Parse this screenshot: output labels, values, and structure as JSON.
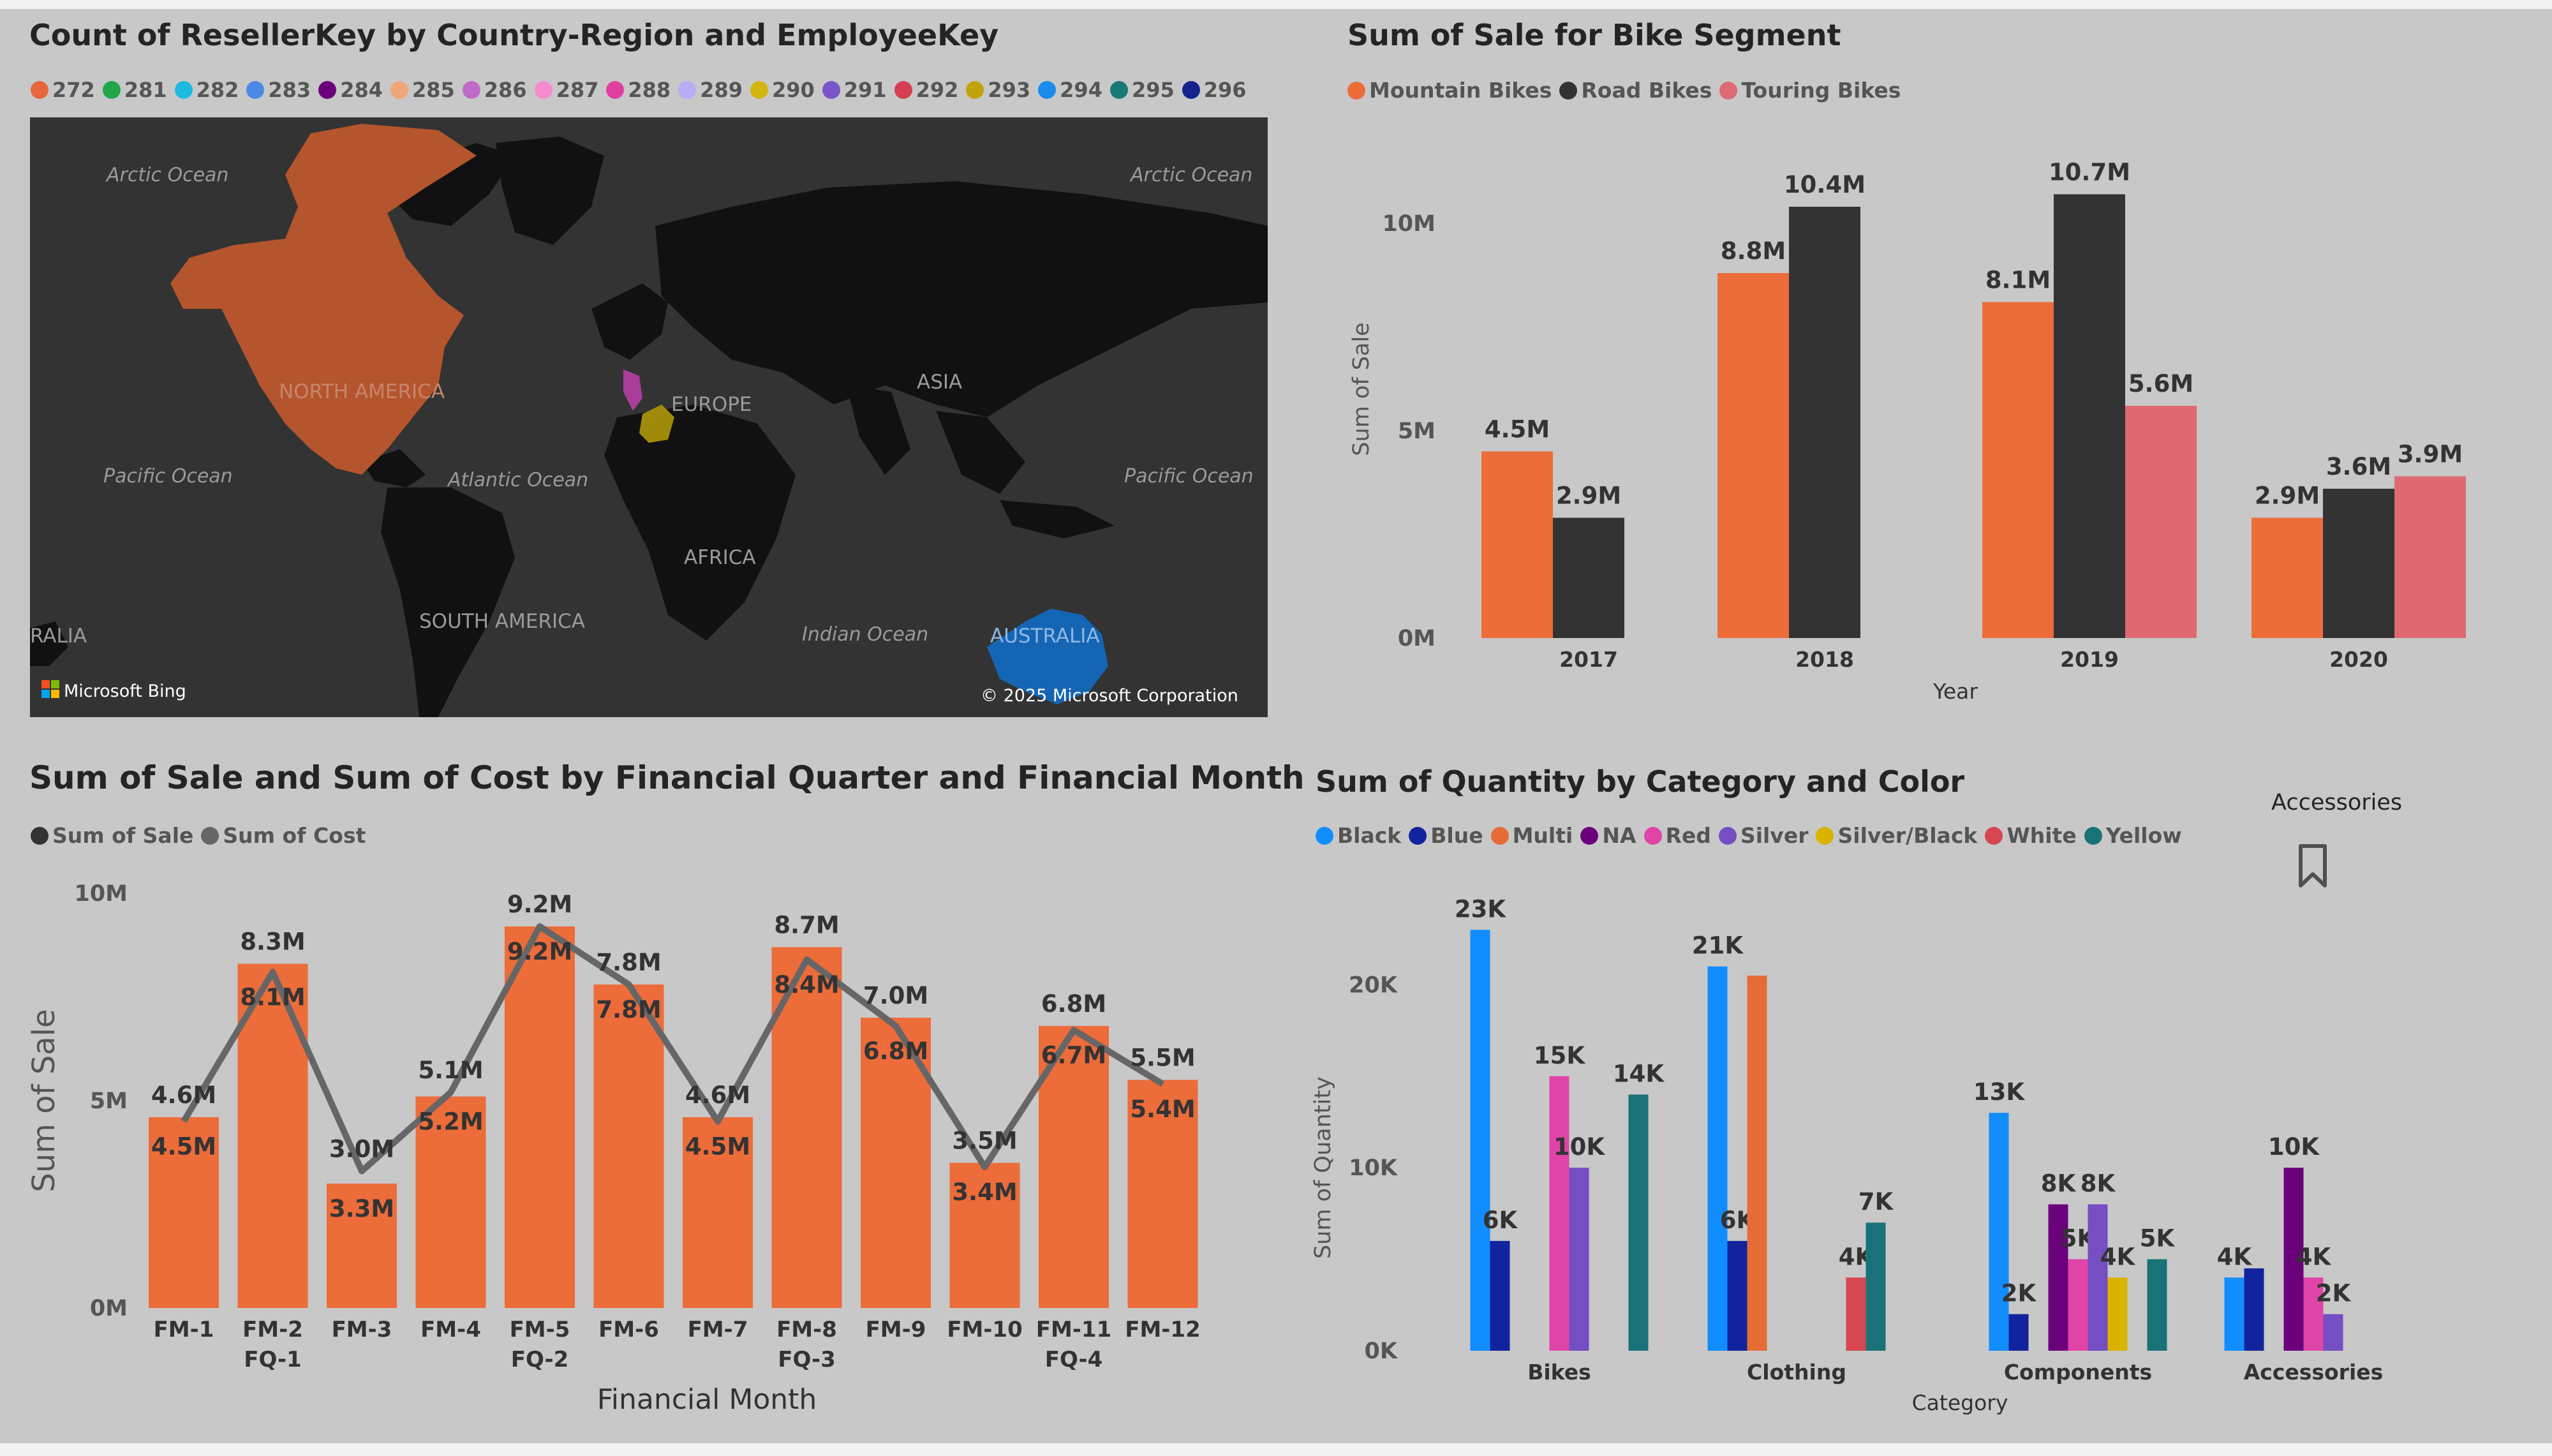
{
  "colors": {
    "orange": "#ec6c3a",
    "dark": "#333333",
    "pink": "#df6a72",
    "line": "#666666"
  },
  "map": {
    "title": "Count of ResellerKey by Country-Region and EmployeeKey",
    "legend": [
      {
        "label": "272",
        "color": "#e7663a"
      },
      {
        "label": "281",
        "color": "#21a64a"
      },
      {
        "label": "282",
        "color": "#1ebbe0"
      },
      {
        "label": "283",
        "color": "#4d88e6"
      },
      {
        "label": "284",
        "color": "#6b007b"
      },
      {
        "label": "285",
        "color": "#f0a57a"
      },
      {
        "label": "286",
        "color": "#c06bc7"
      },
      {
        "label": "287",
        "color": "#f58bcf"
      },
      {
        "label": "288",
        "color": "#e03fa2"
      },
      {
        "label": "289",
        "color": "#b8adf4"
      },
      {
        "label": "290",
        "color": "#d4b40e"
      },
      {
        "label": "291",
        "color": "#7a55c9"
      },
      {
        "label": "292",
        "color": "#d63e51"
      },
      {
        "label": "293",
        "color": "#bfa20c"
      },
      {
        "label": "294",
        "color": "#1b8bed"
      },
      {
        "label": "295",
        "color": "#187a76"
      },
      {
        "label": "296",
        "color": "#15238e"
      }
    ],
    "labels": {
      "arctic_left": "Arctic Ocean",
      "arctic_right": "Arctic Ocean",
      "north_america": "NORTH AMERICA",
      "europe": "EUROPE",
      "asia": "ASIA",
      "pacific_left": "Pacific Ocean",
      "atlantic": "Atlantic Ocean",
      "pacific_right": "Pacific Ocean",
      "africa": "AFRICA",
      "south_america": "SOUTH AMERICA",
      "indian": "Indian Ocean",
      "australia": "AUSTRALIA",
      "ralia": "RALIA"
    },
    "bing": "Microsoft Bing",
    "copyright": "© 2025 Microsoft Corporation"
  },
  "chart_data": [
    {
      "type": "bar",
      "title": "Sum of Sale for Bike Segment",
      "xlabel": "Year",
      "ylabel": "Sum of Sale",
      "categories": [
        "2017",
        "2018",
        "2019",
        "2020"
      ],
      "ylim": [
        0,
        12000000
      ],
      "yticks": [
        {
          "v": 0,
          "label": "0M"
        },
        {
          "v": 5000000,
          "label": "5M"
        },
        {
          "v": 10000000,
          "label": "10M"
        }
      ],
      "series": [
        {
          "name": "Mountain Bikes",
          "color": "#ec6c3a",
          "values": [
            4500000,
            8800000,
            8100000,
            2900000
          ],
          "labels": [
            "4.5M",
            "8.8M",
            "8.1M",
            "2.9M"
          ]
        },
        {
          "name": "Road Bikes",
          "color": "#333333",
          "values": [
            2900000,
            10400000,
            10700000,
            3600000
          ],
          "labels": [
            "2.9M",
            "10.4M",
            "10.7M",
            "3.6M"
          ]
        },
        {
          "name": "Touring Bikes",
          "color": "#df6a72",
          "values": [
            null,
            null,
            5600000,
            3900000
          ],
          "labels": [
            "",
            "",
            "5.6M",
            "3.9M"
          ]
        }
      ]
    },
    {
      "type": "bar+line",
      "title": "Sum of Sale and Sum of Cost by Financial Quarter and Financial Month",
      "xlabel": "Financial Month",
      "ylabel": "Sum of Sale",
      "categories": [
        "FM-1",
        "FM-2",
        "FM-3",
        "FM-4",
        "FM-5",
        "FM-6",
        "FM-7",
        "FM-8",
        "FM-9",
        "FM-10",
        "FM-11",
        "FM-12"
      ],
      "quarters": [
        {
          "label": "FQ-1",
          "at": 1
        },
        {
          "label": "FQ-2",
          "at": 4
        },
        {
          "label": "FQ-3",
          "at": 7
        },
        {
          "label": "FQ-4",
          "at": 10
        }
      ],
      "ylim": [
        0,
        10000000
      ],
      "yticks": [
        {
          "v": 0,
          "label": "0M"
        },
        {
          "v": 5000000,
          "label": "5M"
        },
        {
          "v": 10000000,
          "label": "10M"
        }
      ],
      "series": [
        {
          "name": "Sum of Sale",
          "kind": "bar",
          "color": "#ec6c3a",
          "values": [
            4600000,
            8300000,
            3000000,
            5100000,
            9200000,
            7800000,
            4600000,
            8700000,
            7000000,
            3500000,
            6800000,
            5500000
          ],
          "labels": [
            "4.6M",
            "8.3M",
            "3.0M",
            "5.1M",
            "9.2M",
            "7.8M",
            "4.6M",
            "8.7M",
            "7.0M",
            "3.5M",
            "6.8M",
            "5.5M"
          ]
        },
        {
          "name": "Sum of Cost",
          "kind": "line",
          "color": "#666666",
          "values": [
            4500000,
            8100000,
            3300000,
            5200000,
            9200000,
            7800000,
            4500000,
            8400000,
            6800000,
            3400000,
            6700000,
            5400000
          ],
          "labels": [
            "4.5M",
            "8.1M",
            "3.3M",
            "5.2M",
            "9.2M",
            "7.8M",
            "4.5M",
            "8.4M",
            "6.8M",
            "3.4M",
            "6.7M",
            "5.4M"
          ]
        }
      ]
    },
    {
      "type": "bar",
      "title": "Sum of Quantity by Category and Color",
      "xlabel": "Category",
      "ylabel": "Sum of Quantity",
      "categories": [
        "Bikes",
        "Clothing",
        "Components",
        "Accessories"
      ],
      "ylim": [
        0,
        25000
      ],
      "yticks": [
        {
          "v": 0,
          "label": "0K"
        },
        {
          "v": 10000,
          "label": "10K"
        },
        {
          "v": 20000,
          "label": "20K"
        }
      ],
      "series": [
        {
          "name": "Black",
          "color": "#118dff",
          "values": [
            23000,
            21000,
            13000,
            4000
          ],
          "labels": [
            "23K",
            "21K",
            "13K",
            "4K"
          ]
        },
        {
          "name": "Blue",
          "color": "#12239e",
          "values": [
            6000,
            6000,
            2000,
            4500
          ],
          "labels": [
            "6K",
            "6K",
            "2K",
            ""
          ]
        },
        {
          "name": "Multi",
          "color": "#e66c37",
          "values": [
            null,
            20500,
            null,
            null
          ],
          "labels": [
            "",
            "",
            "",
            ""
          ]
        },
        {
          "name": "NA",
          "color": "#6b007b",
          "values": [
            null,
            null,
            8000,
            10000
          ],
          "labels": [
            "",
            "",
            "8K",
            "10K"
          ]
        },
        {
          "name": "Red",
          "color": "#e044a7",
          "values": [
            15000,
            null,
            5000,
            4000
          ],
          "labels": [
            "15K",
            "",
            "5K",
            "4K"
          ]
        },
        {
          "name": "Silver",
          "color": "#744ec2",
          "values": [
            10000,
            null,
            8000,
            2000
          ],
          "labels": [
            "10K",
            "",
            "8K",
            "2K"
          ]
        },
        {
          "name": "Silver/Black",
          "color": "#d9b300",
          "values": [
            null,
            null,
            4000,
            null
          ],
          "labels": [
            "",
            "",
            "4K",
            ""
          ]
        },
        {
          "name": "White",
          "color": "#d64550",
          "values": [
            null,
            4000,
            null,
            null
          ],
          "labels": [
            "",
            "4K",
            "",
            ""
          ]
        },
        {
          "name": "Yellow",
          "color": "#197278",
          "values": [
            14000,
            7000,
            5000,
            null
          ],
          "labels": [
            "14K",
            "7K",
            "5K",
            ""
          ]
        }
      ],
      "drill_label": "Accessories"
    }
  ]
}
